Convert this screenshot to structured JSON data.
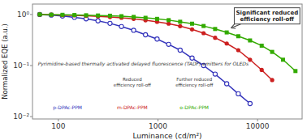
{
  "chart_data": {
    "type": "line",
    "x_label": "Luminance (cd/m²)",
    "y_label": "Normalized EQE (a.u.)",
    "log": true,
    "xlim": [
      55,
      28000
    ],
    "ylim": [
      0.009,
      1.6
    ],
    "xticks": [
      100,
      1000,
      10000
    ],
    "yticks": [
      {
        "value": 0.01,
        "label": "10⁻²"
      },
      {
        "value": 0.1,
        "label": "10⁻¹"
      },
      {
        "value": 1,
        "label": "10⁰"
      }
    ],
    "series": [
      {
        "name": "p-DPAc-PPM",
        "color": "#3333bb",
        "marker": "open-circle",
        "x": [
          65,
          85,
          110,
          145,
          190,
          250,
          330,
          430,
          570,
          750,
          980,
          1280,
          1670,
          2200,
          2870,
          3750,
          4900,
          6400,
          8400
        ],
        "values": [
          1.0,
          0.97,
          0.93,
          0.88,
          0.82,
          0.75,
          0.67,
          0.58,
          0.49,
          0.4,
          0.33,
          0.26,
          0.2,
          0.14,
          0.1,
          0.068,
          0.044,
          0.028,
          0.018
        ]
      },
      {
        "name": "m-DPAc-PPM",
        "color": "#cc2020",
        "marker": "circle",
        "x": [
          65,
          85,
          110,
          145,
          190,
          250,
          330,
          430,
          570,
          750,
          980,
          1280,
          1670,
          2200,
          2870,
          3750,
          4900,
          6400,
          8400,
          11000,
          14000
        ],
        "values": [
          1.0,
          0.99,
          0.97,
          0.96,
          0.94,
          0.92,
          0.89,
          0.86,
          0.82,
          0.77,
          0.72,
          0.66,
          0.59,
          0.51,
          0.43,
          0.35,
          0.27,
          0.2,
          0.13,
          0.082,
          0.052
        ]
      },
      {
        "name": "o-DPAc-PPM",
        "color": "#33aa00",
        "marker": "square",
        "x": [
          65,
          85,
          110,
          145,
          190,
          250,
          330,
          430,
          570,
          750,
          980,
          1280,
          1670,
          2200,
          2870,
          3750,
          4900,
          6400,
          8400,
          11000,
          14000,
          18000,
          24000
        ],
        "values": [
          1.0,
          0.99,
          0.985,
          0.975,
          0.965,
          0.955,
          0.945,
          0.925,
          0.895,
          0.86,
          0.82,
          0.775,
          0.72,
          0.66,
          0.595,
          0.52,
          0.445,
          0.375,
          0.31,
          0.245,
          0.185,
          0.13,
          0.078
        ]
      }
    ],
    "annotations": [
      {
        "text": "Significant reduced\nefficiency roll-off",
        "x": 5500,
        "y": 0.55
      },
      {
        "text": "Pyrimidine-based thermally activated delayed fluorescence (TADF) emitters for OLEDs"
      },
      {
        "text": "Reduced\nefficiency roll-off"
      },
      {
        "text": "Further reduced\nefficiency roll-off"
      }
    ]
  }
}
